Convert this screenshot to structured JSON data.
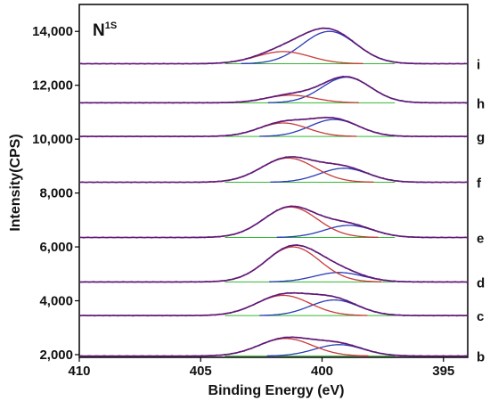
{
  "chart_data": {
    "type": "line",
    "xlabel": "Binding Energy (eV)",
    "ylabel": "Intensity(CPS)",
    "annotation": {
      "main": "N",
      "sup": "1S"
    },
    "x_reversed": true,
    "xlim": [
      410,
      394
    ],
    "xticks": [
      410,
      405,
      400,
      395
    ],
    "ylim": [
      1900,
      15000
    ],
    "yticks": [
      2000,
      4000,
      6000,
      8000,
      10000,
      12000,
      14000
    ],
    "ytick_labels": [
      "2,000",
      "4,000",
      "6,000",
      "8,000",
      "10,000",
      "12,000",
      "14,000"
    ],
    "grid": false,
    "component_colors": {
      "envelope": "#5a1a7a",
      "raw": "#b0206a",
      "component_a": "#c83a3a",
      "component_b": "#2a3ab8",
      "baseline": "#33b833"
    },
    "series": [
      {
        "label": "b",
        "baseline": 1950,
        "components": [
          {
            "center": 401.5,
            "height": 650,
            "width": 1.1
          },
          {
            "center": 399.3,
            "height": 420,
            "width": 1.0
          }
        ]
      },
      {
        "label": "c",
        "baseline": 3450,
        "components": [
          {
            "center": 401.6,
            "height": 750,
            "width": 1.1
          },
          {
            "center": 399.5,
            "height": 580,
            "width": 1.0
          }
        ]
      },
      {
        "label": "d",
        "baseline": 4700,
        "components": [
          {
            "center": 401.2,
            "height": 1300,
            "width": 1.1
          },
          {
            "center": 399.3,
            "height": 350,
            "width": 1.0
          }
        ]
      },
      {
        "label": "e",
        "baseline": 6350,
        "components": [
          {
            "center": 401.3,
            "height": 1130,
            "width": 1.1
          },
          {
            "center": 398.9,
            "height": 450,
            "width": 1.0
          }
        ]
      },
      {
        "label": "f",
        "baseline": 8400,
        "components": [
          {
            "center": 401.4,
            "height": 900,
            "width": 1.1
          },
          {
            "center": 399.1,
            "height": 520,
            "width": 1.0
          }
        ]
      },
      {
        "label": "g",
        "baseline": 10100,
        "components": [
          {
            "center": 401.6,
            "height": 500,
            "width": 1.0
          },
          {
            "center": 399.5,
            "height": 630,
            "width": 1.0
          }
        ]
      },
      {
        "label": "h",
        "baseline": 11350,
        "components": [
          {
            "center": 401.3,
            "height": 280,
            "width": 1.0
          },
          {
            "center": 399.0,
            "height": 950,
            "width": 1.0
          }
        ]
      },
      {
        "label": "i",
        "baseline": 12800,
        "components": [
          {
            "center": 401.6,
            "height": 450,
            "width": 1.1
          },
          {
            "center": 399.7,
            "height": 1200,
            "width": 1.1
          }
        ]
      }
    ]
  }
}
